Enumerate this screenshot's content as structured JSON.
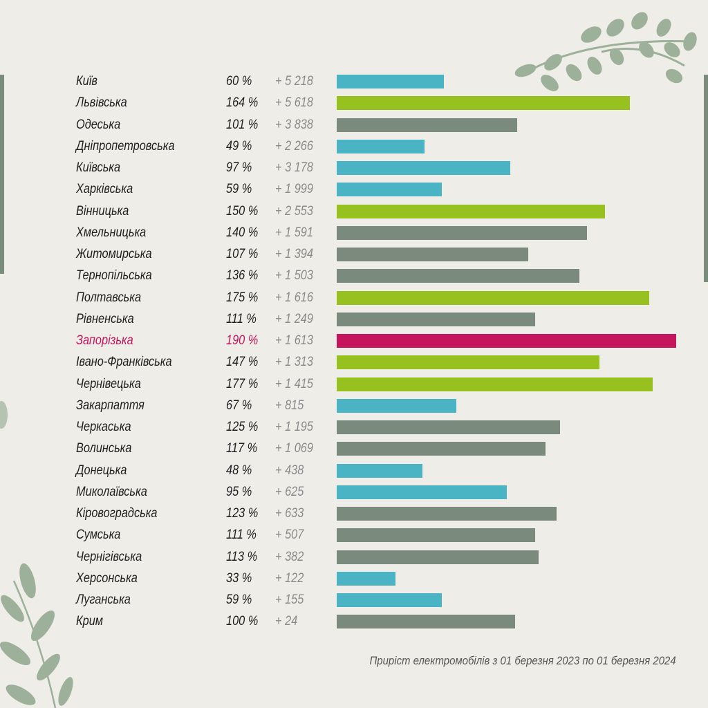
{
  "caption": "Приріст електромобілів з 01 березня 2023 по 01 березня 2024",
  "colors": {
    "background": "#eeede8",
    "blue": "#4ab3c4",
    "green": "#97c11f",
    "gray": "#7a8a7c",
    "highlight": "#c5155c",
    "leaf": "#8ea58b"
  },
  "chart_data": {
    "type": "bar",
    "orientation": "horizontal",
    "title": "",
    "xlabel": "",
    "ylabel": "",
    "xlim": [
      0,
      190
    ],
    "grid": false,
    "categories": [
      "Київ",
      "Львівська",
      "Одеська",
      "Дніпропетровська",
      "Київська",
      "Харківська",
      "Вінницька",
      "Хмельницька",
      "Житомирська",
      "Тернопільська",
      "Полтавська",
      "Рівненська",
      "Запорізька",
      "Івано-Франківська",
      "Чернівецька",
      "Закарпаття",
      "Черкаська",
      "Волинська",
      "Донецька",
      "Миколаївська",
      "Кіровоградська",
      "Сумська",
      "Чернігівська",
      "Херсонська",
      "Луганська",
      "Крим"
    ],
    "rows": [
      {
        "region": "Київ",
        "pct": "60 %",
        "value": 60,
        "increment": "+ 5 218",
        "color": "blue"
      },
      {
        "region": "Львівська",
        "pct": "164 %",
        "value": 164,
        "increment": "+ 5 618",
        "color": "green"
      },
      {
        "region": "Одеська",
        "pct": "101 %",
        "value": 101,
        "increment": "+ 3 838",
        "color": "gray"
      },
      {
        "region": "Дніпропетровська",
        "pct": "49 %",
        "value": 49,
        "increment": "+ 2 266",
        "color": "blue"
      },
      {
        "region": "Київська",
        "pct": "97 %",
        "value": 97,
        "increment": "+ 3 178",
        "color": "blue"
      },
      {
        "region": "Харківська",
        "pct": "59 %",
        "value": 59,
        "increment": "+ 1 999",
        "color": "blue"
      },
      {
        "region": "Вінницька",
        "pct": "150 %",
        "value": 150,
        "increment": "+ 2 553",
        "color": "green"
      },
      {
        "region": "Хмельницька",
        "pct": "140 %",
        "value": 140,
        "increment": "+ 1 591",
        "color": "gray"
      },
      {
        "region": "Житомирська",
        "pct": "107 %",
        "value": 107,
        "increment": "+ 1 394",
        "color": "gray"
      },
      {
        "region": "Тернопільська",
        "pct": "136 %",
        "value": 136,
        "increment": "+ 1 503",
        "color": "gray"
      },
      {
        "region": "Полтавська",
        "pct": "175 %",
        "value": 175,
        "increment": "+ 1 616",
        "color": "green"
      },
      {
        "region": "Рівненська",
        "pct": "111 %",
        "value": 111,
        "increment": "+ 1 249",
        "color": "gray"
      },
      {
        "region": "Запорізька",
        "pct": "190 %",
        "value": 190,
        "increment": "+ 1 613",
        "color": "highlight"
      },
      {
        "region": "Івано-Франківська",
        "pct": "147 %",
        "value": 147,
        "increment": "+ 1 313",
        "color": "green"
      },
      {
        "region": "Чернівецька",
        "pct": "177 %",
        "value": 177,
        "increment": "+ 1 415",
        "color": "green"
      },
      {
        "region": "Закарпаття",
        "pct": "67 %",
        "value": 67,
        "increment": "+ 815",
        "color": "blue"
      },
      {
        "region": "Черкаська",
        "pct": "125 %",
        "value": 125,
        "increment": "+ 1 195",
        "color": "gray"
      },
      {
        "region": "Волинська",
        "pct": "117 %",
        "value": 117,
        "increment": "+ 1 069",
        "color": "gray"
      },
      {
        "region": "Донецька",
        "pct": "48 %",
        "value": 48,
        "increment": "+ 438",
        "color": "blue"
      },
      {
        "region": "Миколаївська",
        "pct": "95 %",
        "value": 95,
        "increment": "+ 625",
        "color": "blue"
      },
      {
        "region": "Кіровоградська",
        "pct": "123 %",
        "value": 123,
        "increment": "+ 633",
        "color": "gray"
      },
      {
        "region": "Сумська",
        "pct": "111 %",
        "value": 111,
        "increment": "+ 507",
        "color": "gray"
      },
      {
        "region": "Чернігівська",
        "pct": "113 %",
        "value": 113,
        "increment": "+ 382",
        "color": "gray"
      },
      {
        "region": "Херсонська",
        "pct": "33 %",
        "value": 33,
        "increment": "+ 122",
        "color": "blue"
      },
      {
        "region": "Луганська",
        "pct": "59 %",
        "value": 59,
        "increment": "+ 155",
        "color": "blue"
      },
      {
        "region": "Крим",
        "pct": "100 %",
        "value": 100,
        "increment": "+ 24",
        "color": "gray"
      }
    ]
  }
}
